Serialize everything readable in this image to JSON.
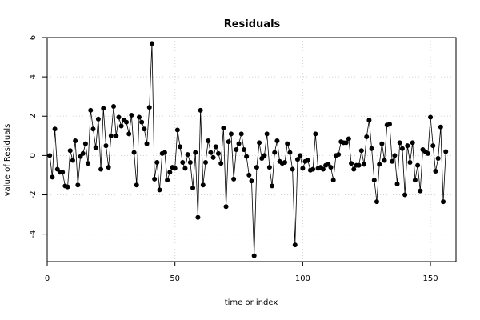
{
  "chart_data": {
    "type": "line",
    "title": "Residuals",
    "xlabel": "time or index",
    "ylabel": "value of Residuals",
    "xlim": [
      0,
      160
    ],
    "ylim": [
      -5.4,
      6
    ],
    "x_ticks": [
      0,
      50,
      100,
      150
    ],
    "y_ticks": [
      -4,
      -2,
      0,
      2,
      4,
      6
    ],
    "x_tick_labels": [
      "0",
      "50",
      "100",
      "150"
    ],
    "y_tick_labels": [
      "-4",
      "-2",
      "0",
      "2",
      "4",
      "6"
    ],
    "grid": true,
    "colors": {
      "line": "#000000",
      "points": "#000000",
      "grid": "#d3d3d3"
    },
    "series": [
      {
        "values": [
          0.0,
          -1.1,
          1.35,
          -0.7,
          -0.85,
          -0.85,
          -1.55,
          -1.6,
          0.25,
          -0.25,
          0.75,
          -1.5,
          -0.05,
          0.1,
          0.6,
          -0.4,
          2.3,
          1.35,
          0.4,
          1.85,
          -0.7,
          2.4,
          0.5,
          -0.6,
          1.0,
          2.5,
          1.0,
          1.95,
          1.5,
          1.8,
          1.7,
          1.1,
          2.05,
          0.15,
          -1.5,
          1.95,
          1.7,
          1.35,
          0.6,
          2.45,
          5.7,
          -1.2,
          -0.35,
          -1.75,
          0.1,
          0.15,
          -1.25,
          -0.85,
          -0.6,
          -0.65,
          1.3,
          0.45,
          -0.35,
          -0.65,
          0.05,
          -0.35,
          -1.65,
          0.15,
          -3.15,
          2.3,
          -1.5,
          -0.35,
          0.75,
          0.15,
          -0.1,
          0.45,
          0.1,
          -0.4,
          1.4,
          -2.6,
          0.7,
          1.1,
          -1.2,
          0.3,
          0.6,
          1.1,
          0.3,
          -0.05,
          -1.0,
          -1.3,
          -5.1,
          -0.6,
          0.65,
          -0.15,
          0.0,
          1.1,
          -0.6,
          -1.55,
          0.15,
          0.75,
          -0.3,
          -0.4,
          -0.35,
          0.6,
          0.15,
          -0.7,
          -4.55,
          -0.2,
          0.0,
          -0.65,
          -0.3,
          -0.25,
          -0.75,
          -0.7,
          1.1,
          -0.65,
          -0.6,
          -0.7,
          -0.5,
          -0.45,
          -0.6,
          -1.25,
          0.0,
          0.05,
          0.7,
          0.65,
          0.65,
          0.85,
          -0.4,
          -0.7,
          -0.5,
          -0.5,
          0.25,
          -0.45,
          0.95,
          1.8,
          0.35,
          -1.25,
          -2.35,
          -0.45,
          0.6,
          -0.25,
          1.55,
          1.6,
          -0.3,
          0.0,
          -1.45,
          0.65,
          0.35,
          -2.0,
          0.5,
          -0.35,
          0.65,
          -1.25,
          -0.5,
          -1.8,
          0.3,
          0.2,
          0.1,
          1.95,
          0.5,
          -0.8,
          -0.15,
          1.45,
          -2.35,
          0.2
        ]
      }
    ]
  }
}
